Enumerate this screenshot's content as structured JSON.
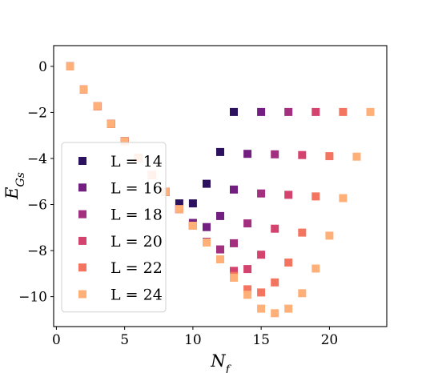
{
  "chart_data": {
    "type": "scatter",
    "xlabel": "N_f",
    "ylabel": "E_Gs",
    "xlim": [
      -0.2,
      24.2
    ],
    "ylim": [
      -11.3,
      0.9
    ],
    "xticks": [
      0,
      5,
      10,
      15,
      20
    ],
    "yticks": [
      0,
      -2,
      -4,
      -6,
      -8,
      -10
    ],
    "tick_labels": {
      "x": [
        "0",
        "5",
        "10",
        "15",
        "20"
      ],
      "y": [
        "0",
        "−2",
        "−4",
        "−6",
        "−8",
        "−10"
      ]
    },
    "grid": false,
    "legend_position": "lower-left",
    "series": [
      {
        "name": "L = 14",
        "color": "#2c115f",
        "x": [
          1,
          2,
          3,
          4,
          5,
          6,
          7,
          8,
          9,
          10,
          11,
          12,
          13
        ],
        "y": [
          0,
          -1.0,
          -1.73,
          -2.5,
          -3.25,
          -3.98,
          -4.72,
          -5.45,
          -5.95,
          -5.95,
          -5.1,
          -3.72,
          -1.98
        ]
      },
      {
        "name": "L = 16",
        "color": "#721f81",
        "x": [
          1,
          2,
          3,
          4,
          5,
          6,
          7,
          8,
          9,
          10,
          11,
          12,
          13,
          14,
          15
        ],
        "y": [
          0,
          -1.0,
          -1.73,
          -2.5,
          -3.25,
          -3.98,
          -4.72,
          -5.45,
          -6.2,
          -6.8,
          -6.98,
          -6.5,
          -5.35,
          -3.8,
          -1.98
        ]
      },
      {
        "name": "L = 18",
        "color": "#a3307e",
        "x": [
          1,
          2,
          3,
          4,
          5,
          6,
          7,
          8,
          9,
          10,
          11,
          12,
          13,
          14,
          15,
          16,
          17
        ],
        "y": [
          0,
          -1.0,
          -1.73,
          -2.5,
          -3.25,
          -3.98,
          -4.72,
          -5.45,
          -6.2,
          -6.92,
          -7.62,
          -7.95,
          -7.68,
          -6.82,
          -5.52,
          -3.82,
          -1.98
        ]
      },
      {
        "name": "L = 20",
        "color": "#d3436e",
        "x": [
          1,
          2,
          3,
          4,
          5,
          6,
          7,
          8,
          9,
          10,
          11,
          12,
          13,
          14,
          15,
          16,
          17,
          18,
          19
        ],
        "y": [
          0,
          -1.0,
          -1.73,
          -2.5,
          -3.25,
          -3.98,
          -4.72,
          -5.45,
          -6.2,
          -6.92,
          -7.65,
          -8.38,
          -8.88,
          -8.8,
          -8.18,
          -7.05,
          -5.58,
          -3.85,
          -1.98
        ]
      },
      {
        "name": "L = 22",
        "color": "#f4755f",
        "x": [
          1,
          2,
          3,
          4,
          5,
          6,
          7,
          8,
          9,
          10,
          11,
          12,
          13,
          14,
          15,
          16,
          17,
          18,
          19,
          20,
          21
        ],
        "y": [
          0,
          -1.0,
          -1.73,
          -2.5,
          -3.25,
          -3.98,
          -4.72,
          -5.45,
          -6.2,
          -6.92,
          -7.65,
          -8.38,
          -9.1,
          -9.68,
          -9.82,
          -9.38,
          -8.52,
          -7.22,
          -5.65,
          -3.9,
          -1.98
        ]
      },
      {
        "name": "L = 24",
        "color": "#feb078",
        "x": [
          1,
          2,
          3,
          4,
          5,
          6,
          7,
          8,
          9,
          10,
          11,
          12,
          13,
          14,
          15,
          16,
          17,
          18,
          19,
          20,
          21,
          22,
          23
        ],
        "y": [
          0,
          -1.0,
          -1.73,
          -2.5,
          -3.25,
          -3.98,
          -4.72,
          -5.45,
          -6.2,
          -6.92,
          -7.65,
          -8.38,
          -9.18,
          -9.92,
          -10.52,
          -10.72,
          -10.52,
          -9.85,
          -8.78,
          -7.35,
          -5.72,
          -3.92,
          -1.98
        ]
      }
    ]
  }
}
